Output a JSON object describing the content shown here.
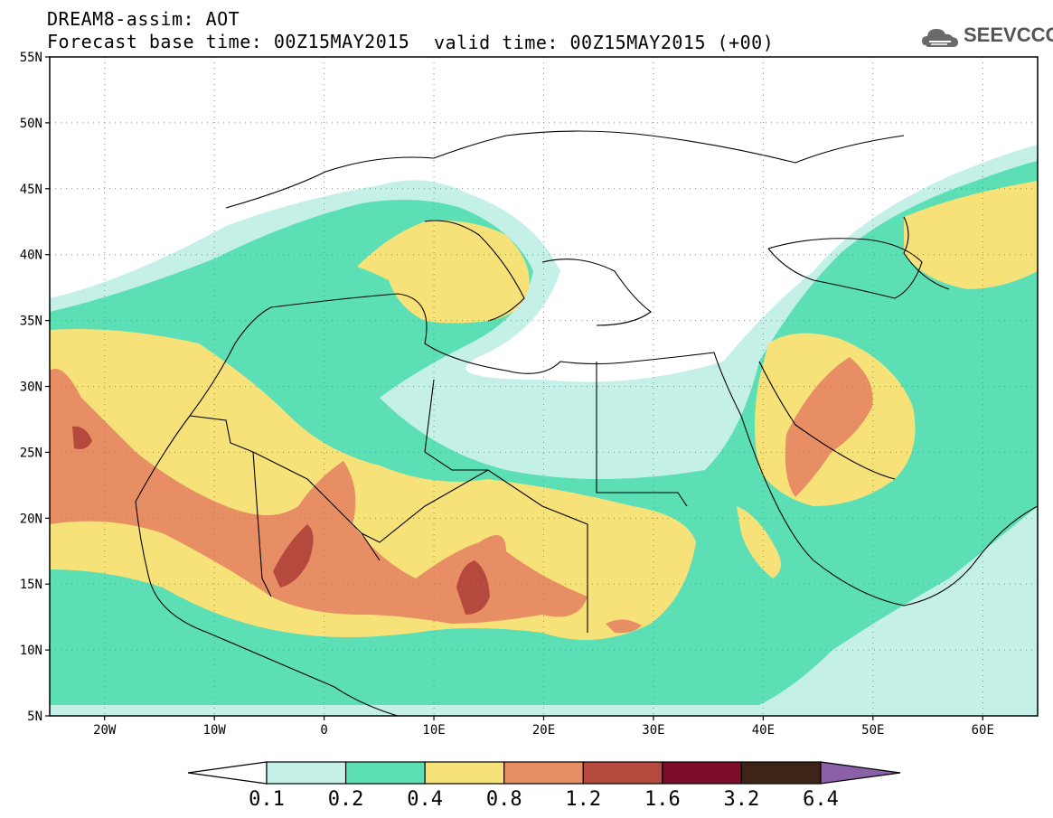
{
  "header": {
    "model_line": "DREAM8-assim: AOT",
    "base_time": "Forecast base time: 00Z15MAY2015",
    "valid_time": "valid time: 00Z15MAY2015 (+00)",
    "logo_text": "SEEVCCC"
  },
  "map": {
    "lat_labels": [
      "55N",
      "50N",
      "45N",
      "40N",
      "35N",
      "30N",
      "25N",
      "20N",
      "15N",
      "10N",
      "5N"
    ],
    "lon_labels": [
      "20W",
      "10W",
      "0",
      "10E",
      "20E",
      "30E",
      "40E",
      "50E",
      "60E"
    ],
    "lat_range": [
      5,
      55
    ],
    "lon_range": [
      -25,
      65
    ]
  },
  "colorbar": {
    "labels": [
      "0.1",
      "0.2",
      "0.4",
      "0.8",
      "1.2",
      "1.6",
      "3.2",
      "6.4"
    ],
    "colors": [
      "#c4f0e8",
      "#5ddfb5",
      "#f7e27a",
      "#e88e64",
      "#b5493d",
      "#7d0d2a",
      "#3e2417",
      "#8a60a8"
    ],
    "under_color": "#ffffff"
  }
}
